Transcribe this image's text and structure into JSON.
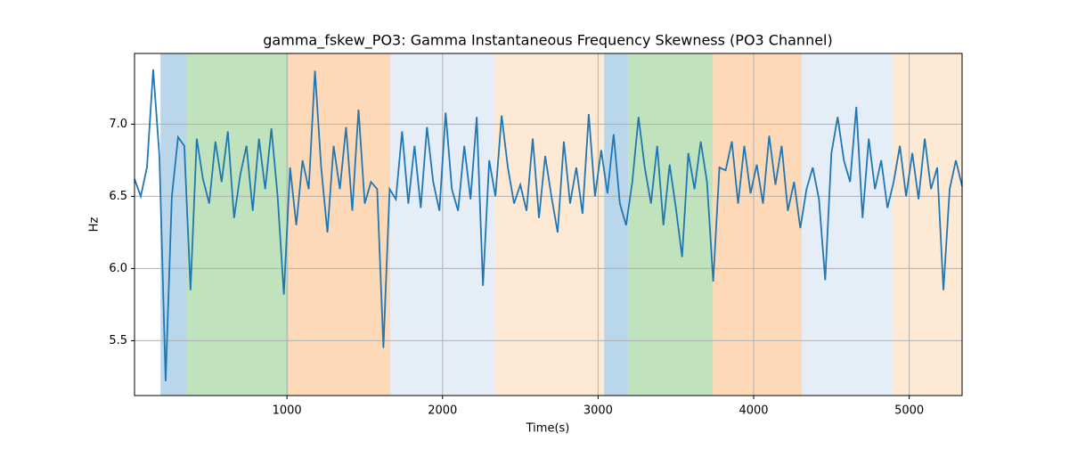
{
  "chart_data": {
    "type": "line",
    "title": "gamma_fskew_PO3: Gamma Instantaneous Frequency Skewness (PO3 Channel)",
    "xlabel": "Time(s)",
    "ylabel": "Hz",
    "xlim": [
      20,
      5340
    ],
    "ylim": [
      5.12,
      7.49
    ],
    "xticks": [
      1000,
      2000,
      3000,
      4000,
      5000
    ],
    "yticks": [
      5.5,
      {
        "value": 6,
        "label": "6.0"
      },
      6.5,
      {
        "value": 7,
        "label": "7.0"
      }
    ],
    "grid": true,
    "spans": [
      {
        "start": 187,
        "end": 358,
        "color": "#bad6ea"
      },
      {
        "start": 358,
        "end": 1011,
        "color": "#c0e3bd"
      },
      {
        "start": 1011,
        "end": 1664,
        "color": "#fed9b7"
      },
      {
        "start": 1664,
        "end": 2340,
        "color": "#e5edf7"
      },
      {
        "start": 2340,
        "end": 3039,
        "color": "#fee9d5"
      },
      {
        "start": 3039,
        "end": 3194,
        "color": "#bad6ea"
      },
      {
        "start": 3194,
        "end": 3738,
        "color": "#c0e3bd"
      },
      {
        "start": 3738,
        "end": 4310,
        "color": "#fed9b7"
      },
      {
        "start": 4310,
        "end": 4895,
        "color": "#e5edf7"
      },
      {
        "start": 4895,
        "end": 5340,
        "color": "#fee9d5"
      }
    ],
    "x": [
      20,
      60,
      100,
      140,
      180,
      220,
      260,
      300,
      340,
      380,
      420,
      460,
      500,
      540,
      580,
      620,
      660,
      700,
      740,
      780,
      820,
      860,
      900,
      940,
      980,
      1020,
      1060,
      1100,
      1140,
      1180,
      1220,
      1260,
      1300,
      1340,
      1380,
      1420,
      1460,
      1500,
      1540,
      1580,
      1620,
      1660,
      1700,
      1740,
      1780,
      1820,
      1860,
      1900,
      1940,
      1980,
      2020,
      2060,
      2100,
      2140,
      2180,
      2220,
      2260,
      2300,
      2340,
      2380,
      2420,
      2460,
      2500,
      2540,
      2580,
      2620,
      2660,
      2700,
      2740,
      2780,
      2820,
      2860,
      2900,
      2940,
      2980,
      3020,
      3060,
      3100,
      3140,
      3180,
      3220,
      3260,
      3300,
      3340,
      3380,
      3420,
      3460,
      3500,
      3540,
      3580,
      3620,
      3660,
      3700,
      3740,
      3780,
      3820,
      3860,
      3900,
      3940,
      3980,
      4020,
      4060,
      4100,
      4140,
      4180,
      4220,
      4260,
      4300,
      4340,
      4380,
      4420,
      4460,
      4500,
      4540,
      4580,
      4620,
      4660,
      4700,
      4740,
      4780,
      4820,
      4860,
      4900,
      4940,
      4980,
      5020,
      5060,
      5100,
      5140,
      5180,
      5220,
      5260,
      5300,
      5340
    ],
    "series": [
      {
        "color": "#1f77b4",
        "values": [
          6.62,
          6.5,
          6.7,
          7.38,
          6.78,
          5.22,
          6.5,
          6.91,
          6.85,
          5.85,
          6.9,
          6.62,
          6.45,
          6.88,
          6.6,
          6.95,
          6.35,
          6.65,
          6.85,
          6.4,
          6.9,
          6.55,
          6.97,
          6.5,
          5.82,
          6.7,
          6.3,
          6.75,
          6.55,
          7.37,
          6.7,
          6.25,
          6.85,
          6.55,
          6.98,
          6.4,
          7.1,
          6.45,
          6.6,
          6.55,
          5.45,
          6.55,
          6.48,
          6.95,
          6.45,
          6.85,
          6.42,
          6.98,
          6.6,
          6.4,
          7.08,
          6.55,
          6.4,
          6.85,
          6.48,
          7.05,
          5.88,
          6.75,
          6.5,
          7.06,
          6.7,
          6.45,
          6.58,
          6.4,
          6.9,
          6.35,
          6.78,
          6.5,
          6.25,
          6.88,
          6.45,
          6.7,
          6.38,
          7.07,
          6.5,
          6.82,
          6.52,
          6.93,
          6.45,
          6.3,
          6.6,
          7.05,
          6.7,
          6.45,
          6.85,
          6.3,
          6.72,
          6.42,
          6.08,
          6.8,
          6.55,
          6.88,
          6.6,
          5.91,
          6.7,
          6.68,
          6.88,
          6.45,
          6.85,
          6.52,
          6.72,
          6.45,
          6.92,
          6.58,
          6.85,
          6.4,
          6.6,
          6.28,
          6.55,
          6.7,
          6.48,
          5.92,
          6.8,
          7.05,
          6.75,
          6.6,
          7.12,
          6.35,
          6.9,
          6.55,
          6.75,
          6.42,
          6.6,
          6.85,
          6.5,
          6.8,
          6.48,
          6.9,
          6.55,
          6.7,
          5.85,
          6.55,
          6.75,
          6.57
        ]
      }
    ]
  }
}
